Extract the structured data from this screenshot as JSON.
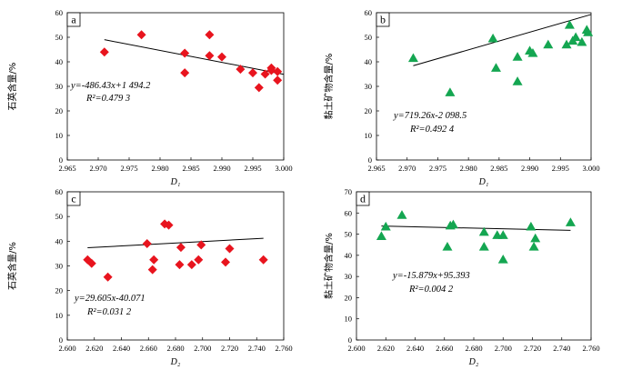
{
  "colors": {
    "diamond": "#e8141e",
    "triangle": "#14a651",
    "line": "#000000"
  },
  "chart_data": [
    {
      "type": "scatter",
      "panel_label": "a",
      "marker": "diamond",
      "xlabel": "D₁",
      "ylabel": "石英含量/%",
      "xlim": [
        2.965,
        3.0
      ],
      "ylim": [
        0,
        60
      ],
      "xticks": [
        "2.965",
        "2.970",
        "2.975",
        "2.980",
        "2.985",
        "2.990",
        "2.995",
        "3.000"
      ],
      "yticks": [
        "0",
        "10",
        "20",
        "30",
        "40",
        "50",
        "60"
      ],
      "points": [
        [
          2.971,
          44
        ],
        [
          2.977,
          51
        ],
        [
          2.984,
          35.5
        ],
        [
          2.984,
          43.5
        ],
        [
          2.988,
          51
        ],
        [
          2.988,
          42.5
        ],
        [
          2.99,
          42
        ],
        [
          2.993,
          37
        ],
        [
          2.995,
          35.5
        ],
        [
          2.996,
          29.5
        ],
        [
          2.997,
          35
        ],
        [
          2.998,
          37.5
        ],
        [
          2.998,
          36.5
        ],
        [
          2.999,
          32.5
        ],
        [
          2.999,
          36
        ]
      ],
      "fit": {
        "x": [
          2.971,
          3.0
        ],
        "slope": -486.43,
        "intercept": 1494.2
      },
      "equation": "y=-486.43x+1 494.2",
      "r2": "R²=0.479 3"
    },
    {
      "type": "scatter",
      "panel_label": "b",
      "marker": "triangle",
      "xlabel": "D₁",
      "ylabel": "黏土矿物含量/%",
      "xlim": [
        2.965,
        3.0
      ],
      "ylim": [
        0,
        60
      ],
      "xticks": [
        "2.965",
        "2.970",
        "2.975",
        "2.980",
        "2.985",
        "2.990",
        "2.995",
        "3.000"
      ],
      "yticks": [
        "0",
        "10",
        "20",
        "30",
        "40",
        "50",
        "60"
      ],
      "points": [
        [
          2.971,
          41.5
        ],
        [
          2.977,
          27.5
        ],
        [
          2.984,
          49.5
        ],
        [
          2.9845,
          37.5
        ],
        [
          2.988,
          32
        ],
        [
          2.988,
          42
        ],
        [
          2.99,
          44.5
        ],
        [
          2.9905,
          43.5
        ],
        [
          2.993,
          47
        ],
        [
          2.996,
          47
        ],
        [
          2.9965,
          55
        ],
        [
          2.997,
          48.5
        ],
        [
          2.9975,
          50
        ],
        [
          2.9985,
          48
        ],
        [
          2.9993,
          53
        ],
        [
          2.9995,
          52
        ]
      ],
      "fit": {
        "x": [
          2.971,
          3.0
        ],
        "slope": 719.26,
        "intercept": -2098.5
      },
      "equation": "y=719.26x-2 098.5",
      "r2": "R²=0.492 4"
    },
    {
      "type": "scatter",
      "panel_label": "c",
      "marker": "diamond",
      "xlabel": "D₂",
      "ylabel": "石英含量/%",
      "xlim": [
        2.6,
        2.76
      ],
      "ylim": [
        0,
        60
      ],
      "xticks": [
        "2.600",
        "2.620",
        "2.640",
        "2.660",
        "2.680",
        "2.700",
        "2.720",
        "2.740",
        "2.760"
      ],
      "yticks": [
        "0",
        "10",
        "20",
        "30",
        "40",
        "50",
        "60"
      ],
      "points": [
        [
          2.615,
          32.5
        ],
        [
          2.618,
          31
        ],
        [
          2.63,
          25.5
        ],
        [
          2.659,
          39
        ],
        [
          2.663,
          28.5
        ],
        [
          2.664,
          32.5
        ],
        [
          2.672,
          47
        ],
        [
          2.675,
          46.5
        ],
        [
          2.683,
          30.5
        ],
        [
          2.684,
          37.5
        ],
        [
          2.692,
          30.5
        ],
        [
          2.697,
          32.5
        ],
        [
          2.699,
          38.5
        ],
        [
          2.717,
          31.5
        ],
        [
          2.72,
          37
        ],
        [
          2.745,
          32.5
        ]
      ],
      "fit": {
        "x": [
          2.615,
          2.745
        ],
        "slope": 29.605,
        "intercept": -40.071
      },
      "equation": "y=29.605x-40.071",
      "r2": "R²=0.031 2"
    },
    {
      "type": "scatter",
      "panel_label": "d",
      "marker": "triangle",
      "xlabel": "D₂",
      "ylabel": "黏土矿物含量/%",
      "xlim": [
        2.6,
        2.76
      ],
      "ylim": [
        0,
        70
      ],
      "xticks": [
        "2.600",
        "2.620",
        "2.640",
        "2.660",
        "2.680",
        "2.700",
        "2.720",
        "2.740",
        "2.760"
      ],
      "yticks": [
        "0",
        "10",
        "20",
        "30",
        "40",
        "50",
        "60",
        "70"
      ],
      "points": [
        [
          2.617,
          49
        ],
        [
          2.62,
          53.5
        ],
        [
          2.631,
          59
        ],
        [
          2.662,
          44
        ],
        [
          2.664,
          54
        ],
        [
          2.666,
          54.5
        ],
        [
          2.687,
          51
        ],
        [
          2.687,
          44
        ],
        [
          2.696,
          49.5
        ],
        [
          2.7,
          49.5
        ],
        [
          2.7,
          38
        ],
        [
          2.719,
          53.5
        ],
        [
          2.721,
          44
        ],
        [
          2.722,
          48
        ],
        [
          2.746,
          55.5
        ]
      ],
      "fit": {
        "x": [
          2.617,
          2.746
        ],
        "slope": -15.879,
        "intercept": 95.393
      },
      "equation": "y=-15.879x+95.393",
      "r2": "R²=0.004 2"
    }
  ]
}
